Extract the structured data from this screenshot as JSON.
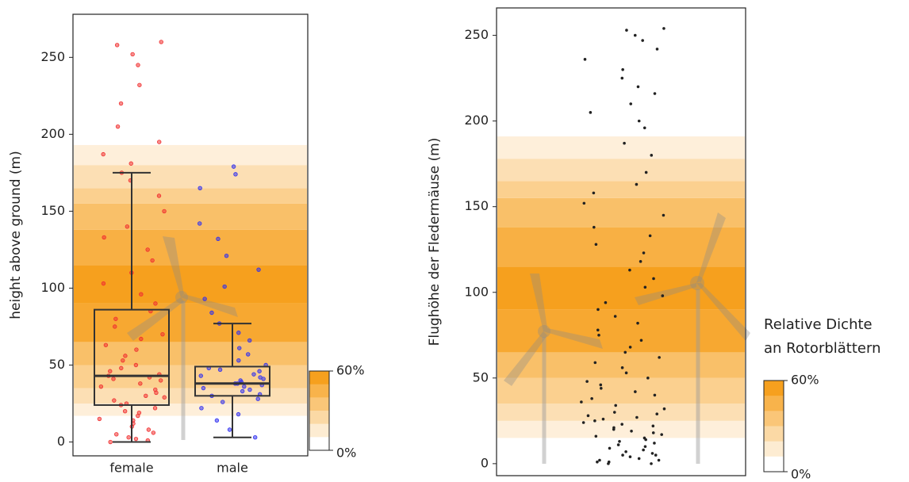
{
  "chart_data": [
    {
      "type": "box",
      "ylabel": "height above ground (m)",
      "ylim": [
        -9,
        278
      ],
      "yticks": [
        0,
        50,
        100,
        150,
        200,
        250
      ],
      "categories": [
        "female",
        "male"
      ],
      "boxes": [
        {
          "color": "#f03030",
          "min": 0,
          "q1": 24,
          "median": 43,
          "q3": 86,
          "max": 175,
          "points": [
            0,
            1,
            2,
            3,
            5,
            6,
            8,
            10,
            12,
            14,
            15,
            17,
            19,
            20,
            22,
            24,
            25,
            27,
            29,
            30,
            32,
            34,
            36,
            38,
            40,
            41,
            42,
            43,
            44,
            46,
            48,
            50,
            53,
            56,
            60,
            63,
            67,
            70,
            75,
            80,
            85,
            90,
            96,
            103,
            110,
            118,
            125,
            133,
            140,
            150,
            160,
            170,
            175,
            181,
            187,
            195,
            205,
            220,
            232,
            245,
            252,
            258,
            260
          ]
        },
        {
          "color": "#3030f0",
          "min": 3,
          "q1": 30,
          "median": 38,
          "q3": 49,
          "max": 77,
          "points": [
            3,
            8,
            14,
            18,
            22,
            26,
            28,
            30,
            31,
            33,
            34,
            35,
            36,
            37,
            38,
            38,
            39,
            40,
            41,
            42,
            43,
            44,
            46,
            47,
            48,
            50,
            53,
            57,
            61,
            66,
            71,
            77,
            84,
            93,
            101,
            112,
            121,
            132,
            142,
            165,
            174,
            179
          ]
        }
      ],
      "bands": [
        {
          "from": 17,
          "to": 25,
          "density": 10
        },
        {
          "from": 25,
          "to": 35,
          "density": 20
        },
        {
          "from": 35,
          "to": 50,
          "density": 30
        },
        {
          "from": 50,
          "to": 65,
          "density": 40
        },
        {
          "from": 65,
          "to": 90,
          "density": 55
        },
        {
          "from": 90,
          "to": 115,
          "density": 60
        },
        {
          "from": 115,
          "to": 138,
          "density": 50
        },
        {
          "from": 138,
          "to": 155,
          "density": 40
        },
        {
          "from": 155,
          "to": 165,
          "density": 30
        },
        {
          "from": 165,
          "to": 180,
          "density": 20
        },
        {
          "from": 180,
          "to": 193,
          "density": 10
        }
      ],
      "legend": {
        "scale_colors": [
          "#ffffff",
          "#f6a01e"
        ],
        "ticks": [
          {
            "value": 60,
            "label": "60%"
          },
          {
            "value": 0,
            "label": "0%"
          }
        ]
      }
    },
    {
      "type": "strip",
      "ylabel": "Flughöhe der Fledermäuse (m)",
      "ylim": [
        -7,
        266
      ],
      "yticks": [
        0,
        50,
        100,
        150,
        200,
        250
      ],
      "points": [
        0,
        0,
        1,
        1,
        2,
        2,
        3,
        4,
        5,
        5,
        6,
        7,
        8,
        9,
        10,
        11,
        12,
        13,
        14,
        15,
        16,
        17,
        18,
        19,
        20,
        21,
        22,
        23,
        24,
        25,
        26,
        27,
        28,
        29,
        30,
        32,
        34,
        36,
        38,
        40,
        42,
        44,
        46,
        48,
        50,
        53,
        56,
        59,
        62,
        65,
        68,
        72,
        75,
        78,
        82,
        86,
        90,
        94,
        98,
        103,
        108,
        113,
        118,
        123,
        128,
        133,
        138,
        145,
        152,
        158,
        163,
        170,
        180,
        187,
        196,
        200,
        205,
        210,
        216,
        220,
        225,
        230,
        236,
        242,
        247,
        250,
        253,
        254
      ],
      "point_color": "#222222",
      "bands": [
        {
          "from": 15,
          "to": 25,
          "density": 10
        },
        {
          "from": 25,
          "to": 35,
          "density": 20
        },
        {
          "from": 35,
          "to": 50,
          "density": 30
        },
        {
          "from": 50,
          "to": 65,
          "density": 40
        },
        {
          "from": 65,
          "to": 90,
          "density": 55
        },
        {
          "from": 90,
          "to": 115,
          "density": 60
        },
        {
          "from": 115,
          "to": 138,
          "density": 50
        },
        {
          "from": 138,
          "to": 155,
          "density": 40
        },
        {
          "from": 155,
          "to": 165,
          "density": 30
        },
        {
          "from": 165,
          "to": 178,
          "density": 20
        },
        {
          "from": 178,
          "to": 191,
          "density": 10
        }
      ],
      "legend": {
        "title_lines": [
          "Relative Dichte",
          "an Rotorblättern"
        ],
        "scale_colors": [
          "#ffffff",
          "#f6a01e"
        ],
        "ticks": [
          {
            "value": 60,
            "label": "60%"
          },
          {
            "value": 0,
            "label": "0%"
          }
        ]
      }
    }
  ]
}
